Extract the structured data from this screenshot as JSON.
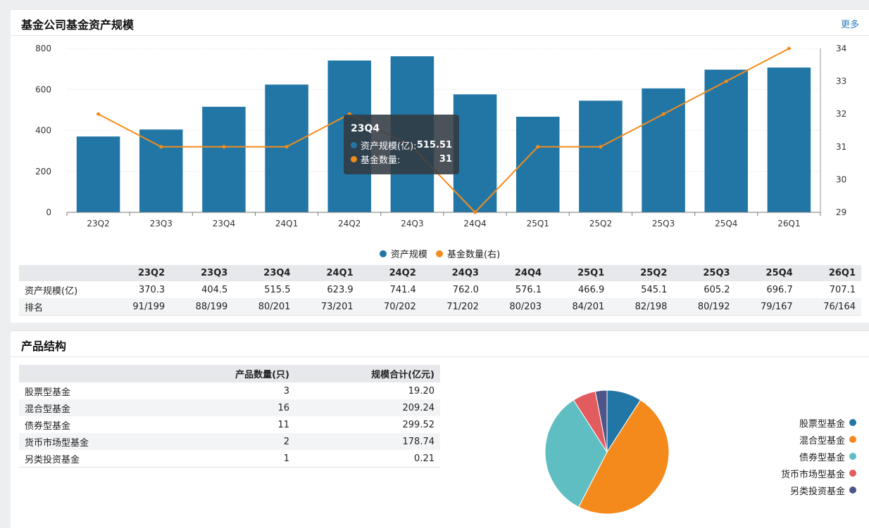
{
  "asset_panel": {
    "title": "基金公司基金资产规模",
    "more": "更多"
  },
  "tooltip": {
    "title": "23Q4",
    "row1_name": "资产规模(亿):",
    "row1_value": "515.51",
    "row2_name": "基金数量:",
    "row2_value": "31"
  },
  "legend": {
    "asset": "资产规模",
    "count": "基金数量(右)"
  },
  "colors": {
    "bar": "#2276a6",
    "line": "#f28c1c",
    "pie": [
      "#2276a6",
      "#f58a1c",
      "#5fbec1",
      "#e25c5f",
      "#4d5589"
    ]
  },
  "stats_table": {
    "row1_label": "资产规模(亿)",
    "row2_label": "排名",
    "headers": [
      "23Q2",
      "23Q3",
      "23Q4",
      "24Q1",
      "24Q2",
      "24Q3",
      "24Q4",
      "25Q1",
      "25Q2",
      "25Q3",
      "25Q4",
      "26Q1"
    ],
    "scale": [
      "370.3",
      "404.5",
      "515.5",
      "623.9",
      "741.4",
      "762.0",
      "576.1",
      "466.9",
      "545.1",
      "605.2",
      "696.7",
      "707.1"
    ],
    "rank": [
      "91/199",
      "88/199",
      "80/201",
      "73/201",
      "70/202",
      "71/202",
      "80/203",
      "84/201",
      "82/198",
      "80/192",
      "79/167",
      "76/164"
    ]
  },
  "product_panel": {
    "title": "产品结构",
    "col_count": "产品数量(只)",
    "col_scale": "规模合计(亿元)",
    "rows": [
      {
        "name": "股票型基金",
        "count": "3",
        "scale": "19.20"
      },
      {
        "name": "混合型基金",
        "count": "16",
        "scale": "209.24"
      },
      {
        "name": "债券型基金",
        "count": "11",
        "scale": "299.52"
      },
      {
        "name": "货币市场型基金",
        "count": "2",
        "scale": "178.74"
      },
      {
        "name": "另类投资基金",
        "count": "1",
        "scale": "0.21"
      }
    ]
  },
  "chart_data": [
    {
      "type": "bar",
      "categories": [
        "23Q2",
        "23Q3",
        "23Q4",
        "24Q1",
        "24Q2",
        "24Q3",
        "24Q4",
        "25Q1",
        "25Q2",
        "25Q3",
        "25Q4",
        "26Q1"
      ],
      "series": [
        {
          "name": "资产规模",
          "type": "bar",
          "axis": "left",
          "values": [
            370.3,
            404.5,
            515.5,
            623.9,
            741.4,
            762.0,
            576.1,
            466.9,
            545.1,
            605.2,
            696.7,
            707.1
          ]
        },
        {
          "name": "基金数量(右)",
          "type": "line",
          "axis": "right",
          "values": [
            32,
            31,
            31,
            31,
            32,
            31,
            29,
            31,
            31,
            32,
            33,
            34
          ]
        }
      ],
      "ylim": [
        0,
        800
      ],
      "yticks": [
        0,
        200,
        400,
        600,
        800
      ],
      "y2lim": [
        29,
        34
      ],
      "y2ticks": [
        29,
        30,
        31,
        32,
        33,
        34
      ],
      "legend": "bottom"
    },
    {
      "type": "pie",
      "labels": [
        "股票型基金",
        "混合型基金",
        "债券型基金",
        "货币市场型基金",
        "另类投资基金"
      ],
      "values": [
        3,
        16,
        11,
        2,
        1
      ],
      "legend": "right"
    }
  ]
}
